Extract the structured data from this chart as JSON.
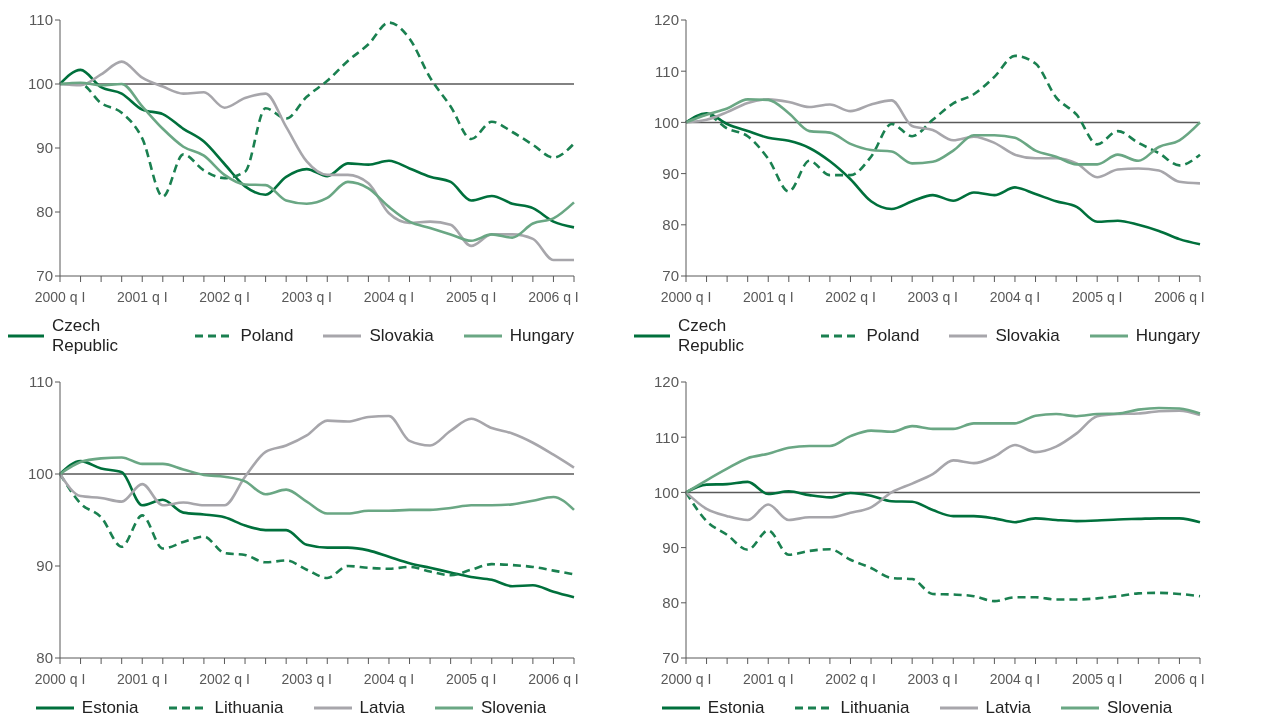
{
  "chart_data": [
    {
      "type": "line",
      "categories": [
        "2000 q I",
        null,
        null,
        null,
        "2001 q I",
        null,
        null,
        null,
        "2002 q I",
        null,
        null,
        null,
        "2003 q I",
        null,
        null,
        null,
        "2004 q I",
        null,
        null,
        null,
        "2005 q I",
        null,
        null,
        null,
        "2006 q I",
        null
      ],
      "ylim": [
        70,
        110
      ],
      "yticks": [
        70,
        80,
        90,
        100,
        110
      ],
      "grid": false,
      "legend": "bottom",
      "marker": "none",
      "line_style": "solid",
      "ref_lines": [
        {
          "axis": "y",
          "value": 100,
          "color": "#595959"
        }
      ],
      "series": [
        {
          "name": "Czech Republic",
          "color": "#00703c",
          "values": [
            100,
            102.2,
            99.5,
            98.5,
            96,
            95.3,
            93,
            91,
            87.5,
            84,
            82.7,
            85.5,
            86.7,
            85.6,
            87.6,
            87.4,
            88,
            86.8,
            85.5,
            84.7,
            81.8,
            82.5,
            81.3,
            80.6,
            78.5,
            77.6
          ]
        },
        {
          "name": "Poland",
          "color": "#1a8050",
          "line_style": "dashed",
          "values": [
            100,
            100,
            97,
            95.5,
            91.5,
            82.4,
            89,
            86.5,
            85.3,
            86.3,
            96.2,
            94.6,
            98,
            100.5,
            103.6,
            106.2,
            109.6,
            107.1,
            101,
            96.5,
            91.4,
            94.1,
            92.5,
            90.5,
            88.5,
            90.7
          ]
        },
        {
          "name": "Slovakia",
          "color": "#a7a6ab",
          "values": [
            100,
            99.8,
            101.5,
            103.5,
            101,
            99.6,
            98.5,
            98.7,
            96.3,
            97.8,
            98.5,
            93.3,
            87.9,
            85.8,
            85.8,
            84.5,
            79.8,
            78.3,
            78.5,
            78,
            74.7,
            76.5,
            76.5,
            75.8,
            72.5,
            72.5
          ]
        },
        {
          "name": "Hungary",
          "color": "#6aa784",
          "values": [
            100,
            100.2,
            99.8,
            100,
            96.5,
            93,
            90.2,
            88.8,
            85.8,
            84.3,
            84.2,
            81.8,
            81.3,
            82.2,
            84.7,
            83.7,
            80.8,
            78.5,
            77.5,
            76.5,
            75.5,
            76.5,
            76,
            78.2,
            79,
            81.5
          ]
        }
      ]
    },
    {
      "type": "line",
      "categories": [
        "2000 q I",
        null,
        null,
        null,
        "2001 q I",
        null,
        null,
        null,
        "2002 q I",
        null,
        null,
        null,
        "2003 q I",
        null,
        null,
        null,
        "2004 q I",
        null,
        null,
        null,
        "2005 q I",
        null,
        null,
        null,
        "2006 q I",
        null
      ],
      "ylim": [
        70,
        120
      ],
      "yticks": [
        70,
        80,
        90,
        100,
        110,
        120
      ],
      "grid": false,
      "legend": "bottom",
      "marker": "none",
      "line_style": "solid",
      "ref_lines": [
        {
          "axis": "y",
          "value": 100,
          "color": "#595959"
        }
      ],
      "series": [
        {
          "name": "Czech Republic",
          "color": "#00703c",
          "values": [
            100,
            101.8,
            99.7,
            98.3,
            97,
            96.4,
            95,
            92.4,
            88.9,
            84.6,
            83.1,
            84.6,
            85.8,
            84.7,
            86.3,
            85.8,
            87.3,
            86,
            84.6,
            83.5,
            80.6,
            80.8,
            80,
            78.8,
            77.2,
            76.2
          ]
        },
        {
          "name": "Poland",
          "color": "#1a8050",
          "line_style": "dashed",
          "values": [
            100,
            101.5,
            98.8,
            97.3,
            92.9,
            86.5,
            92.5,
            89.7,
            89.7,
            93.3,
            99.7,
            97.3,
            100.5,
            103.7,
            105.5,
            108.9,
            113,
            111.5,
            104.9,
            101.5,
            95.7,
            98.3,
            96,
            94,
            91.6,
            93.7
          ]
        },
        {
          "name": "Slovakia",
          "color": "#a7a6ab",
          "values": [
            100,
            100.5,
            102,
            103.8,
            104.5,
            104,
            103,
            103.5,
            102.2,
            103.5,
            104.3,
            99.3,
            98.5,
            96.5,
            97.2,
            96,
            93.7,
            93,
            93,
            92,
            89.3,
            90.8,
            91,
            90.6,
            88.4,
            88.1
          ]
        },
        {
          "name": "Hungary",
          "color": "#6aa784",
          "values": [
            100,
            101.5,
            102.7,
            104.5,
            104.4,
            101.8,
            98.3,
            98,
            95.8,
            94.6,
            94.3,
            92,
            92.3,
            94.5,
            97.5,
            97.5,
            97,
            94.5,
            93.3,
            91.8,
            91.8,
            93.7,
            92.5,
            95.2,
            96.5,
            100
          ]
        }
      ]
    },
    {
      "type": "line",
      "categories": [
        "2000 q I",
        null,
        null,
        null,
        "2001 q I",
        null,
        null,
        null,
        "2002 q I",
        null,
        null,
        null,
        "2003 q I",
        null,
        null,
        null,
        "2004 q I",
        null,
        null,
        null,
        "2005 q I",
        null,
        null,
        null,
        "2006 q I",
        null
      ],
      "ylim": [
        80,
        110
      ],
      "yticks": [
        80,
        90,
        100,
        110
      ],
      "grid": false,
      "legend": "bottom",
      "marker": "none",
      "line_style": "solid",
      "ref_lines": [
        {
          "axis": "y",
          "value": 100,
          "color": "#595959"
        }
      ],
      "series": [
        {
          "name": "Estonia",
          "color": "#00703c",
          "values": [
            100,
            101.4,
            100.6,
            100.2,
            96.6,
            97.2,
            95.8,
            95.6,
            95.3,
            94.4,
            93.9,
            93.9,
            92.3,
            92,
            92,
            91.7,
            91,
            90.3,
            89.8,
            89.3,
            88.8,
            88.5,
            87.8,
            87.9,
            87.2,
            86.6
          ]
        },
        {
          "name": "Lithuania",
          "color": "#1a8050",
          "line_style": "dashed",
          "values": [
            100,
            96.8,
            95.3,
            92.1,
            95.5,
            91.9,
            92.6,
            93.2,
            91.4,
            91.2,
            90.4,
            90.6,
            89.6,
            88.7,
            90,
            89.8,
            89.7,
            89.9,
            89.4,
            89,
            89.6,
            90.2,
            90.1,
            89.9,
            89.5,
            89.1
          ]
        },
        {
          "name": "Latvia",
          "color": "#a7a6ab",
          "values": [
            100,
            97.6,
            97.4,
            97,
            98.9,
            96.6,
            96.9,
            96.6,
            96.6,
            99.7,
            102.4,
            103.1,
            104.2,
            105.8,
            105.7,
            106.2,
            106.3,
            103.6,
            103.1,
            104.7,
            106,
            105,
            104.4,
            103.4,
            102.1,
            100.7
          ]
        },
        {
          "name": "Slovenia",
          "color": "#6aa784",
          "values": [
            100,
            101.3,
            101.7,
            101.8,
            101.1,
            101.1,
            100.5,
            99.9,
            99.7,
            99.2,
            97.8,
            98.3,
            97,
            95.7,
            95.7,
            96,
            96,
            96.1,
            96.1,
            96.3,
            96.6,
            96.6,
            96.7,
            97.1,
            97.5,
            96.1
          ]
        }
      ]
    },
    {
      "type": "line",
      "categories": [
        "2000 q I",
        null,
        null,
        null,
        "2001 q I",
        null,
        null,
        null,
        "2002 q I",
        null,
        null,
        null,
        "2003 q I",
        null,
        null,
        null,
        "2004 q I",
        null,
        null,
        null,
        "2005 q I",
        null,
        null,
        null,
        "2006 q I",
        null
      ],
      "ylim": [
        70,
        120
      ],
      "yticks": [
        70,
        80,
        90,
        100,
        110,
        120
      ],
      "grid": false,
      "legend": "bottom",
      "marker": "none",
      "line_style": "solid",
      "ref_lines": [
        {
          "axis": "y",
          "value": 100,
          "color": "#595959"
        }
      ],
      "series": [
        {
          "name": "Estonia",
          "color": "#00703c",
          "values": [
            100,
            101.4,
            101.5,
            101.9,
            99.7,
            100.2,
            99.5,
            99.1,
            99.9,
            99.4,
            98.4,
            98.3,
            96.8,
            95.7,
            95.7,
            95.3,
            94.6,
            95.3,
            95,
            94.8,
            94.9,
            95.1,
            95.2,
            95.3,
            95.3,
            94.6
          ]
        },
        {
          "name": "Lithuania",
          "color": "#1a8050",
          "line_style": "dashed",
          "values": [
            100,
            94.8,
            92.3,
            89.6,
            93.1,
            88.7,
            89.4,
            89.7,
            87.8,
            86.3,
            84.5,
            84.3,
            81.6,
            81.5,
            81.2,
            80.3,
            81,
            81,
            80.6,
            80.6,
            80.8,
            81.2,
            81.7,
            81.8,
            81.6,
            81.2
          ]
        },
        {
          "name": "Latvia",
          "color": "#a7a6ab",
          "values": [
            100,
            97,
            95.7,
            95,
            97.8,
            95,
            95.5,
            95.5,
            96.3,
            97.3,
            100,
            101.6,
            103.3,
            105.8,
            105.3,
            106.5,
            108.6,
            107.3,
            108.3,
            110.7,
            113.8,
            114.2,
            114.3,
            114.7,
            114.8,
            114
          ]
        },
        {
          "name": "Slovenia",
          "color": "#6aa784",
          "values": [
            100,
            102.2,
            104.3,
            106.2,
            107,
            108.1,
            108.4,
            108.4,
            110.2,
            111.2,
            111,
            112,
            111.5,
            111.5,
            112.5,
            112.5,
            112.5,
            113.9,
            114.2,
            113.8,
            114.2,
            114.3,
            115,
            115.3,
            115.2,
            114.3
          ]
        }
      ]
    }
  ]
}
